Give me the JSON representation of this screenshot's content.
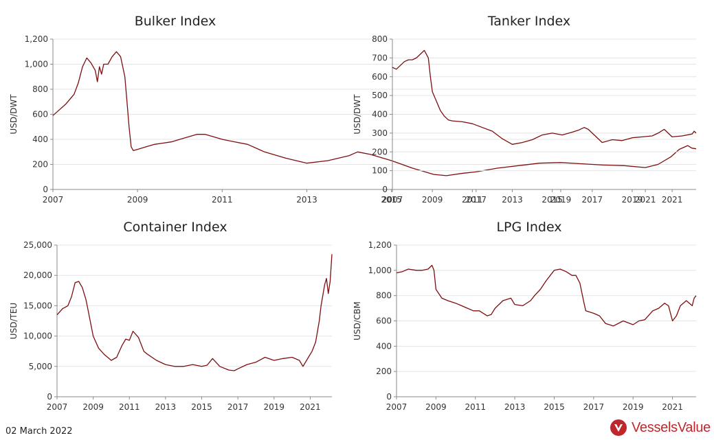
{
  "footer": {
    "date": "02 March 2022",
    "brand": "VesselsValue"
  },
  "colors": {
    "series": "#7d0d0d",
    "brand": "#c0272d"
  },
  "chart_data": [
    {
      "type": "line",
      "title": "Bulker Index",
      "ylabel": "USD/DWT",
      "xlim": [
        2007.0,
        2022.2
      ],
      "ylim": [
        0,
        1200
      ],
      "xticks": [
        2007,
        2009,
        2011,
        2013,
        2015,
        2017,
        2019,
        2021
      ],
      "yticks": [
        0,
        200,
        400,
        600,
        800,
        1000,
        1200
      ],
      "ytick_labels": [
        "0",
        "200",
        "400",
        "600",
        "800",
        "1,000",
        "1,200"
      ],
      "grid": true,
      "x": [
        2007.0,
        2007.1,
        2007.3,
        2007.5,
        2007.6,
        2007.7,
        2007.8,
        2007.9,
        2008.0,
        2008.05,
        2008.1,
        2008.15,
        2008.2,
        2008.3,
        2008.4,
        2008.5,
        2008.6,
        2008.7,
        2008.75,
        2008.8,
        2008.85,
        2008.9,
        2009.0,
        2009.2,
        2009.4,
        2009.6,
        2009.8,
        2010.0,
        2010.2,
        2010.4,
        2010.6,
        2010.8,
        2011.0,
        2011.3,
        2011.6,
        2012.0,
        2012.5,
        2013.0,
        2013.5,
        2014.0,
        2014.2,
        2014.5,
        2015.0,
        2015.5,
        2016.0,
        2016.3,
        2016.7,
        2017.0,
        2017.5,
        2018.0,
        2018.5,
        2019.0,
        2019.5,
        2020.0,
        2020.5,
        2021.0,
        2021.3,
        2021.6,
        2021.8,
        2022.0,
        2022.1,
        2022.2
      ],
      "y": [
        590,
        620,
        680,
        760,
        850,
        980,
        1050,
        1010,
        950,
        860,
        980,
        920,
        1000,
        1000,
        1060,
        1100,
        1060,
        900,
        700,
        500,
        340,
        310,
        320,
        340,
        360,
        370,
        380,
        400,
        420,
        440,
        440,
        420,
        400,
        380,
        360,
        300,
        250,
        210,
        230,
        270,
        300,
        280,
        230,
        170,
        120,
        110,
        130,
        140,
        170,
        190,
        210,
        215,
        205,
        195,
        190,
        175,
        200,
        260,
        320,
        350,
        330,
        325
      ]
    },
    {
      "type": "line",
      "title": "Tanker Index",
      "ylabel": "USD/DWT",
      "xlim": [
        2007.0,
        2022.2
      ],
      "ylim": [
        0,
        800
      ],
      "xticks": [
        2007,
        2009,
        2011,
        2013,
        2015,
        2017,
        2019,
        2021
      ],
      "yticks": [
        0,
        100,
        200,
        300,
        400,
        500,
        600,
        700,
        800
      ],
      "ytick_labels": [
        "0",
        "100",
        "200",
        "300",
        "400",
        "500",
        "600",
        "700",
        "800"
      ],
      "grid": true,
      "x": [
        2007.0,
        2007.2,
        2007.4,
        2007.6,
        2007.8,
        2008.0,
        2008.2,
        2008.4,
        2008.6,
        2008.8,
        2008.9,
        2009.0,
        2009.2,
        2009.4,
        2009.6,
        2009.8,
        2010.0,
        2010.5,
        2011.0,
        2011.5,
        2012.0,
        2012.5,
        2013.0,
        2013.5,
        2014.0,
        2014.5,
        2015.0,
        2015.5,
        2016.0,
        2016.3,
        2016.6,
        2016.8,
        2017.0,
        2017.5,
        2018.0,
        2018.5,
        2019.0,
        2019.5,
        2020.0,
        2020.3,
        2020.6,
        2021.0,
        2021.5,
        2022.0,
        2022.1,
        2022.2
      ],
      "y": [
        650,
        640,
        660,
        680,
        690,
        690,
        700,
        720,
        740,
        700,
        600,
        520,
        470,
        420,
        390,
        370,
        365,
        360,
        350,
        330,
        310,
        270,
        240,
        250,
        265,
        290,
        300,
        290,
        305,
        315,
        330,
        320,
        300,
        250,
        265,
        260,
        275,
        280,
        285,
        300,
        320,
        280,
        285,
        295,
        310,
        300
      ]
    },
    {
      "type": "line",
      "title": "Container Index",
      "ylabel": "USD/TEU",
      "xlim": [
        2007.0,
        2022.2
      ],
      "ylim": [
        0,
        25000
      ],
      "xticks": [
        2007,
        2009,
        2011,
        2013,
        2015,
        2017,
        2019,
        2021
      ],
      "yticks": [
        0,
        5000,
        10000,
        15000,
        20000,
        25000
      ],
      "ytick_labels": [
        "0",
        "5,000",
        "10,000",
        "15,000",
        "20,000",
        "25,000"
      ],
      "grid": true,
      "x": [
        2007.0,
        2007.3,
        2007.6,
        2007.8,
        2008.0,
        2008.2,
        2008.4,
        2008.6,
        2008.8,
        2009.0,
        2009.3,
        2009.6,
        2010.0,
        2010.3,
        2010.6,
        2010.8,
        2011.0,
        2011.2,
        2011.5,
        2011.8,
        2012.0,
        2012.5,
        2013.0,
        2013.5,
        2014.0,
        2014.5,
        2015.0,
        2015.3,
        2015.6,
        2016.0,
        2016.5,
        2016.8,
        2017.0,
        2017.5,
        2018.0,
        2018.5,
        2019.0,
        2019.5,
        2020.0,
        2020.4,
        2020.6,
        2020.9,
        2021.1,
        2021.3,
        2021.5,
        2021.6,
        2021.8,
        2021.9,
        2022.0,
        2022.1,
        2022.2
      ],
      "y": [
        13500,
        14500,
        15000,
        16500,
        18800,
        19000,
        18000,
        16000,
        13000,
        10000,
        8000,
        7000,
        6000,
        6500,
        8500,
        9500,
        9300,
        10800,
        9800,
        7500,
        7000,
        6000,
        5300,
        5000,
        5000,
        5300,
        5000,
        5200,
        6300,
        5000,
        4400,
        4300,
        4600,
        5300,
        5700,
        6500,
        6000,
        6300,
        6500,
        6000,
        5000,
        6500,
        7500,
        9000,
        12500,
        15000,
        18500,
        19500,
        17000,
        19000,
        23500
      ]
    },
    {
      "type": "line",
      "title": "LPG Index",
      "ylabel": "USD/CBM",
      "xlim": [
        2007.0,
        2022.2
      ],
      "ylim": [
        0,
        1200
      ],
      "xticks": [
        2007,
        2009,
        2011,
        2013,
        2015,
        2017,
        2019,
        2021
      ],
      "yticks": [
        0,
        200,
        400,
        600,
        800,
        1000,
        1200
      ],
      "ytick_labels": [
        "0",
        "200",
        "400",
        "600",
        "800",
        "1,000",
        "1,200"
      ],
      "grid": true,
      "x": [
        2007.0,
        2007.3,
        2007.6,
        2008.0,
        2008.3,
        2008.6,
        2008.8,
        2008.9,
        2009.0,
        2009.3,
        2009.6,
        2010.0,
        2010.3,
        2010.6,
        2010.9,
        2011.2,
        2011.6,
        2011.8,
        2012.0,
        2012.4,
        2012.8,
        2013.0,
        2013.4,
        2013.8,
        2014.0,
        2014.3,
        2014.6,
        2015.0,
        2015.3,
        2015.6,
        2015.9,
        2016.1,
        2016.3,
        2016.5,
        2016.6,
        2017.0,
        2017.3,
        2017.6,
        2018.0,
        2018.5,
        2019.0,
        2019.3,
        2019.6,
        2020.0,
        2020.3,
        2020.6,
        2020.8,
        2021.0,
        2021.2,
        2021.4,
        2021.7,
        2022.0,
        2022.1,
        2022.2
      ],
      "y": [
        980,
        990,
        1010,
        1000,
        1000,
        1010,
        1040,
        1000,
        850,
        780,
        760,
        740,
        720,
        700,
        680,
        680,
        640,
        650,
        700,
        760,
        780,
        730,
        720,
        760,
        800,
        850,
        920,
        1000,
        1010,
        990,
        960,
        960,
        900,
        750,
        680,
        660,
        640,
        580,
        560,
        600,
        570,
        600,
        610,
        680,
        700,
        740,
        720,
        600,
        640,
        720,
        760,
        720,
        780,
        800
      ]
    }
  ]
}
